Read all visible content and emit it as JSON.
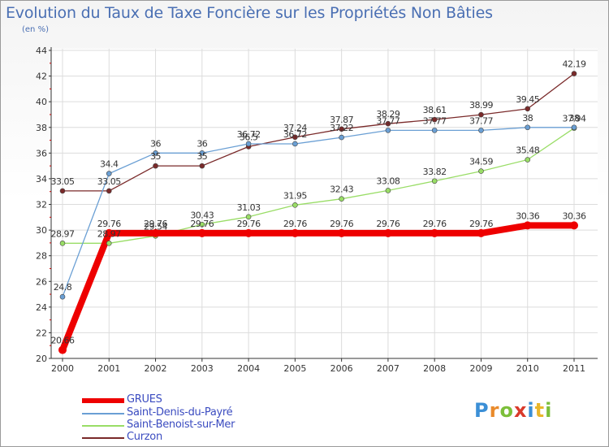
{
  "title": "Evolution du Taux de Taxe Foncière sur les Propriétés Non Bâties",
  "unit": "(en %)",
  "brand": {
    "p": "P",
    "r": "r",
    "o": "o",
    "x": "x",
    "i": "i",
    "t": "t",
    "i2": "i"
  },
  "chart_data": {
    "type": "line",
    "title": "Evolution du Taux de Taxe Foncière sur les Propriétés Non Bâties",
    "ylabel": "(en %)",
    "xlabel": "",
    "ylim": [
      20,
      44
    ],
    "yticks": [
      "20",
      "22",
      "24",
      "26",
      "28",
      "30",
      "32",
      "34",
      "36",
      "38",
      "40",
      "42",
      "44"
    ],
    "categories": [
      "2000",
      "2001",
      "2002",
      "2003",
      "2004",
      "2005",
      "2006",
      "2007",
      "2008",
      "2009",
      "2010",
      "2011"
    ],
    "series": [
      {
        "name": "Curzon",
        "color": "#7a2a2a",
        "width": 1.3,
        "values": [
          33.05,
          33.05,
          35,
          35,
          36.5,
          37.24,
          37.87,
          38.29,
          38.61,
          38.99,
          39.45,
          42.19
        ],
        "labels": [
          "33.05",
          "33.05",
          "35",
          "35",
          "36.5",
          "37.24",
          "37.87",
          "38.29",
          "38.61",
          "38.99",
          "39.45",
          "42.19"
        ]
      },
      {
        "name": "Saint-Benoist-sur-Mer",
        "color": "#99dd66",
        "width": 1.3,
        "values": [
          28.97,
          28.97,
          29.54,
          30.43,
          31.03,
          31.95,
          32.43,
          33.08,
          33.82,
          34.59,
          35.48,
          37.94
        ],
        "labels": [
          "28.97",
          "28.97",
          "29.54",
          "30.43",
          "31.03",
          "31.95",
          "32.43",
          "33.08",
          "33.82",
          "34.59",
          "35.48",
          "37.94"
        ]
      },
      {
        "name": "Saint-Denis-du-Payré",
        "color": "#6a9fd4",
        "width": 1.3,
        "values": [
          24.8,
          34.4,
          36,
          36,
          36.72,
          36.72,
          37.22,
          37.77,
          37.77,
          37.77,
          38,
          38
        ],
        "labels": [
          "24.8",
          "34.4",
          "36",
          "36",
          "36.72",
          "36.72",
          "37.22",
          "37.77",
          "37.77",
          "37.77",
          "38",
          "38"
        ]
      },
      {
        "name": "GRUES",
        "color": "#ee0000",
        "width": 8,
        "values": [
          20.66,
          29.76,
          29.76,
          29.76,
          29.76,
          29.76,
          29.76,
          29.76,
          29.76,
          29.76,
          30.36,
          30.36
        ],
        "labels": [
          "20.66",
          "29.76",
          "29.76",
          "29.76",
          "29.76",
          "29.76",
          "29.76",
          "29.76",
          "29.76",
          "29.76",
          "30.36",
          "30.36"
        ]
      }
    ],
    "legend": [
      {
        "name": "GRUES",
        "color": "#ee0000"
      },
      {
        "name": "Saint-Denis-du-Payré",
        "color": "#6a9fd4"
      },
      {
        "name": "Saint-Benoist-sur-Mer",
        "color": "#99dd66"
      },
      {
        "name": "Curzon",
        "color": "#7a2a2a"
      }
    ]
  }
}
